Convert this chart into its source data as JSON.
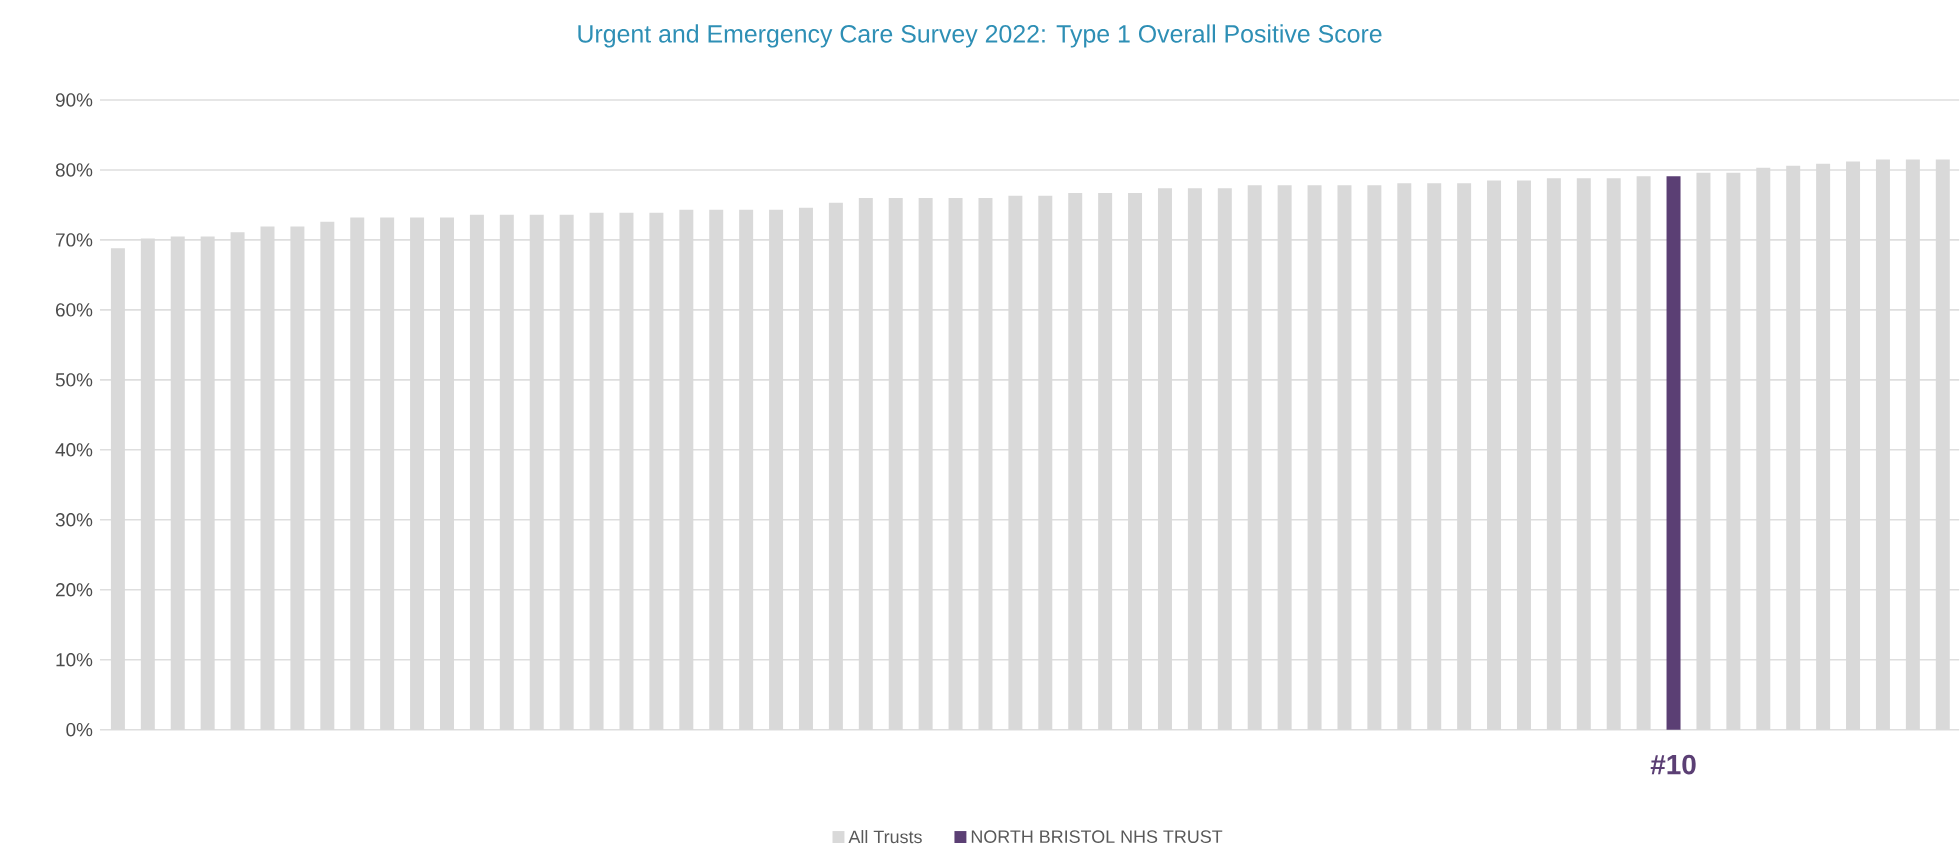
{
  "chart_data": {
    "type": "bar",
    "title": "Urgent and Emergency Care Survey 2022: Type 1 Overall Positive Score",
    "categories": [
      null,
      null,
      null,
      null,
      null,
      null,
      null,
      null,
      null,
      null,
      null,
      null,
      null,
      null,
      null,
      null,
      null,
      null,
      null,
      null,
      null,
      null,
      null,
      null,
      null,
      null,
      null,
      null,
      null,
      null,
      null,
      null,
      null,
      null,
      null,
      null,
      null,
      null,
      null,
      null,
      null,
      null,
      null,
      null,
      null,
      null,
      null,
      null,
      null,
      null,
      null,
      null,
      null,
      null,
      null,
      null,
      null,
      null,
      null,
      null,
      null,
      null
    ],
    "series": [
      {
        "name": "All Trusts",
        "color": "#d9d9d9",
        "values": [
          68.8,
          70.2,
          70.5,
          70.5,
          71.1,
          71.9,
          71.9,
          72.6,
          73.2,
          73.2,
          73.2,
          73.2,
          73.6,
          73.6,
          73.6,
          73.6,
          73.9,
          73.9,
          73.9,
          74.3,
          74.3,
          74.3,
          74.3,
          74.6,
          75.3,
          76.0,
          76.0,
          76.0,
          76.0,
          76.0,
          76.3,
          76.3,
          76.7,
          76.7,
          76.7,
          77.4,
          77.4,
          77.4,
          77.8,
          77.8,
          77.8,
          77.8,
          77.8,
          78.1,
          78.1,
          78.1,
          78.5,
          78.5,
          78.8,
          78.8,
          78.8,
          79.1,
          null,
          79.6,
          79.6,
          80.3,
          80.6,
          80.9,
          81.2,
          81.5,
          81.5,
          81.5
        ]
      },
      {
        "name": "NORTH BRISTOL NHS TRUST",
        "color": "#5b3f74",
        "values": [
          null,
          null,
          null,
          null,
          null,
          null,
          null,
          null,
          null,
          null,
          null,
          null,
          null,
          null,
          null,
          null,
          null,
          null,
          null,
          null,
          null,
          null,
          null,
          null,
          null,
          null,
          null,
          null,
          null,
          null,
          null,
          null,
          null,
          null,
          null,
          null,
          null,
          null,
          null,
          null,
          null,
          null,
          null,
          null,
          null,
          null,
          null,
          null,
          null,
          null,
          null,
          null,
          79.1,
          null,
          null,
          null,
          null,
          null,
          null,
          null,
          null,
          null
        ]
      }
    ],
    "ylim": [
      0,
      90
    ],
    "yticks": [
      {
        "value": 0,
        "label": "0%"
      },
      {
        "value": 10,
        "label": "10%"
      },
      {
        "value": 20,
        "label": "20%"
      },
      {
        "value": 30,
        "label": "30%"
      },
      {
        "value": 40,
        "label": "40%"
      },
      {
        "value": 50,
        "label": "50%"
      },
      {
        "value": 60,
        "label": "60%"
      },
      {
        "value": 70,
        "label": "70%"
      },
      {
        "value": 80,
        "label": "80%"
      },
      {
        "value": 90,
        "label": "90%"
      }
    ],
    "grid": "y",
    "legend": "bottom",
    "tick_labels": "y",
    "annotations": [
      "#10"
    ]
  }
}
